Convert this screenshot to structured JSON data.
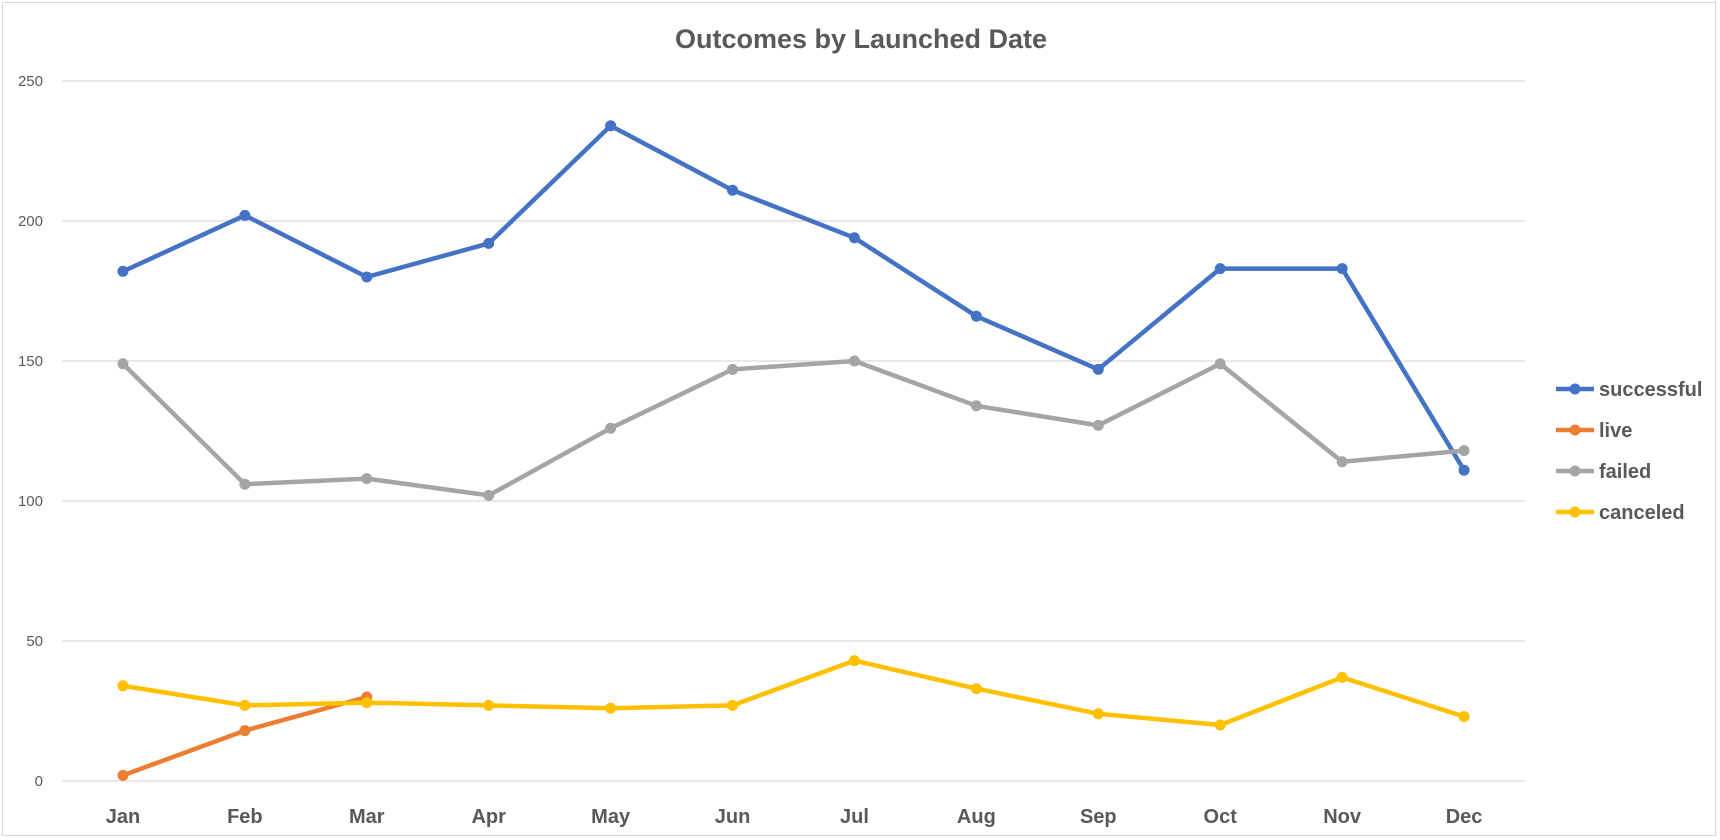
{
  "chart_data": {
    "type": "line",
    "title": "Outcomes by Launched Date",
    "xlabel": "",
    "ylabel": "",
    "categories": [
      "Jan",
      "Feb",
      "Mar",
      "Apr",
      "May",
      "Jun",
      "Jul",
      "Aug",
      "Sep",
      "Oct",
      "Nov",
      "Dec"
    ],
    "ylim": [
      0,
      250
    ],
    "yticks": [
      "0",
      "50",
      "100",
      "150",
      "200",
      "250"
    ],
    "grid": true,
    "legend_position": "right",
    "series": [
      {
        "name": "successful",
        "color": "#4472C4",
        "values": [
          182,
          202,
          180,
          192,
          234,
          211,
          194,
          166,
          147,
          183,
          183,
          111
        ]
      },
      {
        "name": "live",
        "color": "#ED7D31",
        "values": [
          2,
          18,
          30,
          null,
          null,
          null,
          null,
          null,
          null,
          null,
          null,
          null
        ]
      },
      {
        "name": "failed",
        "color": "#A5A5A5",
        "values": [
          149,
          106,
          108,
          102,
          126,
          147,
          150,
          134,
          127,
          149,
          114,
          118
        ]
      },
      {
        "name": "canceled",
        "color": "#FFC000",
        "values": [
          34,
          27,
          28,
          27,
          26,
          27,
          43,
          33,
          24,
          20,
          37,
          23
        ]
      }
    ]
  }
}
